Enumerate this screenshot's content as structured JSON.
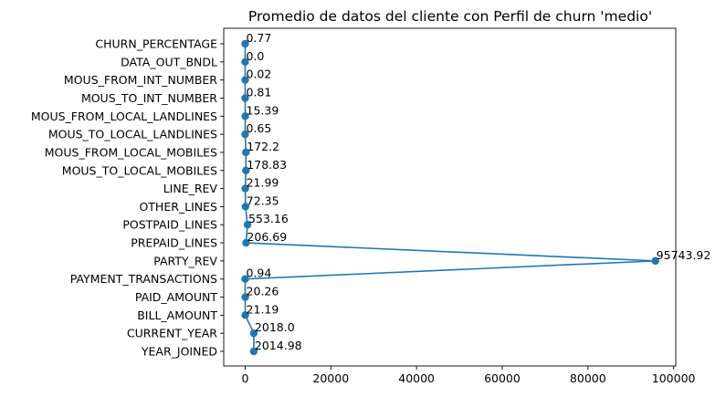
{
  "chart_data": {
    "type": "line",
    "title": "Promedio de datos del cliente con Perfil de churn 'medio'",
    "xlabel": "",
    "ylabel": "",
    "xlim": [
      -5000,
      100500
    ],
    "xticks": [
      0,
      20000,
      40000,
      60000,
      80000,
      100000
    ],
    "grid": false,
    "color": "#1f77b4",
    "categories": [
      "CHURN_PERCENTAGE",
      "DATA_OUT_BNDL",
      "MOUS_FROM_INT_NUMBER",
      "MOUS_TO_INT_NUMBER",
      "MOUS_FROM_LOCAL_LANDLINES",
      "MOUS_TO_LOCAL_LANDLINES",
      "MOUS_FROM_LOCAL_MOBILES",
      "MOUS_TO_LOCAL_MOBILES",
      "LINE_REV",
      "OTHER_LINES",
      "POSTPAID_LINES",
      "PREPAID_LINES",
      "PARTY_REV",
      "PAYMENT_TRANSACTIONS",
      "PAID_AMOUNT",
      "BILL_AMOUNT",
      "CURRENT_YEAR",
      "YEAR_JOINED"
    ],
    "values": [
      0.77,
      0.0,
      0.02,
      0.81,
      15.39,
      0.65,
      172.2,
      178.83,
      21.99,
      72.35,
      553.16,
      206.69,
      95743.92,
      0.94,
      20.26,
      21.19,
      2018.0,
      2014.98
    ],
    "data_labels": [
      "0.77",
      "0.0",
      "0.02",
      "0.81",
      "15.39",
      "0.65",
      "172.2",
      "178.83",
      "21.99",
      "72.35",
      "553.16",
      "206.69",
      "95743.92",
      "0.94",
      "20.26",
      "21.19",
      "2018.0",
      "2014.98"
    ]
  }
}
